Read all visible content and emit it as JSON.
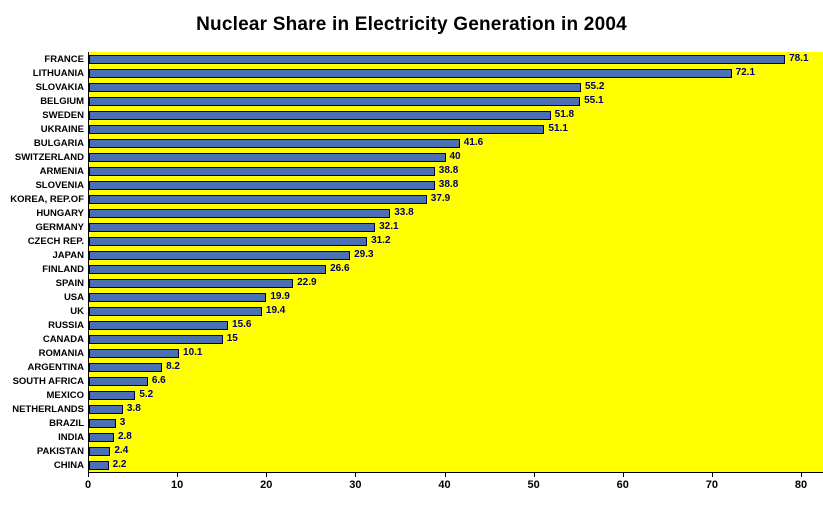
{
  "title": "Nuclear Share in Electricity Generation in 2004",
  "chart_data": {
    "type": "bar",
    "orientation": "horizontal",
    "title": "Nuclear Share in Electricity Generation in 2004",
    "xlabel": "",
    "ylabel": "",
    "xlim": [
      0,
      80
    ],
    "x_ticks": [
      0,
      10,
      20,
      30,
      40,
      50,
      60,
      70,
      80
    ],
    "grid": false,
    "legend_position": "none",
    "plot_bg_color": "#ffff00",
    "bar_color": "#4a6fb5",
    "bar_border_color": "#00003c",
    "value_label_color": "#00006b",
    "categories": [
      "FRANCE",
      "LITHUANIA",
      "SLOVAKIA",
      "BELGIUM",
      "SWEDEN",
      "UKRAINE",
      "BULGARIA",
      "SWITZERLAND",
      "ARMENIA",
      "SLOVENIA",
      "KOREA, REP.OF",
      "HUNGARY",
      "GERMANY",
      "CZECH REP.",
      "JAPAN",
      "FINLAND",
      "SPAIN",
      "USA",
      "UK",
      "RUSSIA",
      "CANADA",
      "ROMANIA",
      "ARGENTINA",
      "SOUTH AFRICA",
      "MEXICO",
      "NETHERLANDS",
      "BRAZIL",
      "INDIA",
      "PAKISTAN",
      "CHINA"
    ],
    "values": [
      78.1,
      72.1,
      55.2,
      55.1,
      51.8,
      51.1,
      41.6,
      40,
      38.8,
      38.8,
      37.9,
      33.8,
      32.1,
      31.2,
      29.3,
      26.6,
      22.9,
      19.9,
      19.4,
      15.6,
      15,
      10.1,
      8.2,
      6.6,
      5.2,
      3.8,
      3,
      2.8,
      2.4,
      2.2
    ],
    "value_labels": [
      "78.1",
      "72.1",
      "55.2",
      "55.1",
      "51.8",
      "51.1",
      "41.6",
      "40",
      "38.8",
      "38.8",
      "37.9",
      "33.8",
      "32.1",
      "31.2",
      "29.3",
      "26.6",
      "22.9",
      "19.9",
      "19.4",
      "15.6",
      "15",
      "10.1",
      "8.2",
      "6.6",
      "5.2",
      "3.8",
      "3",
      "2.8",
      "2.4",
      "2.2"
    ]
  }
}
